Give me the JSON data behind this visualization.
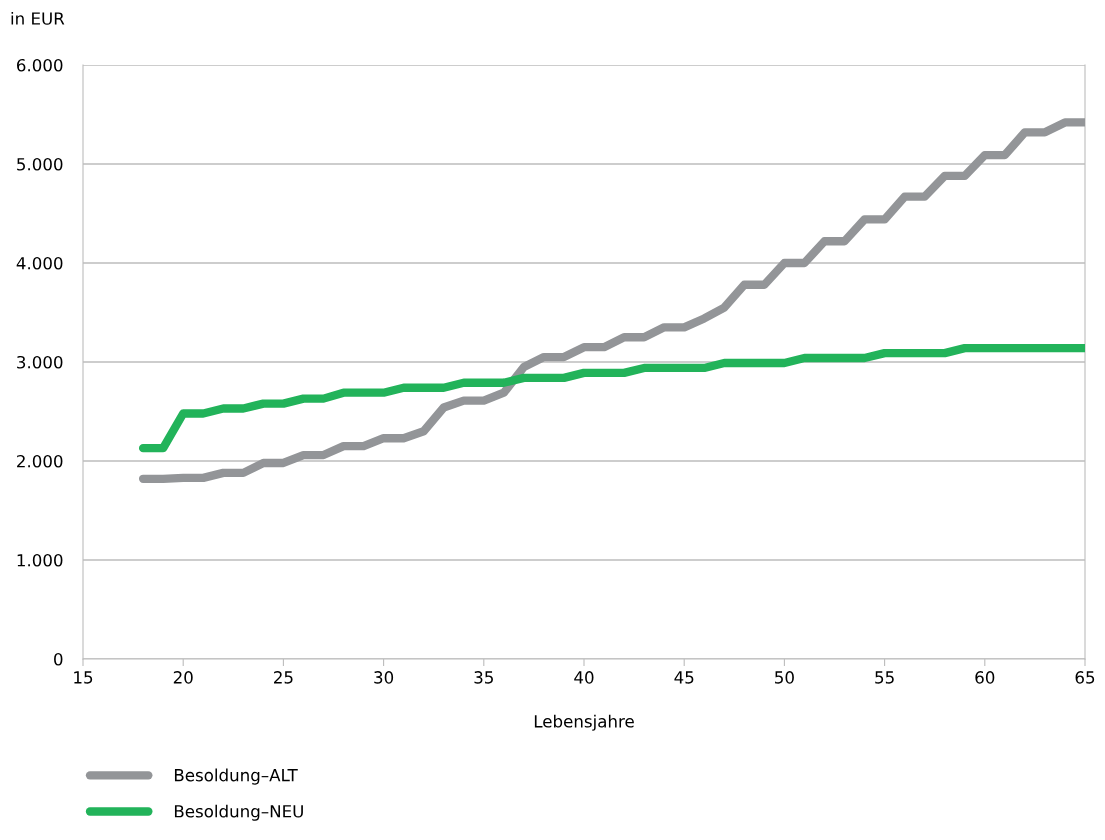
{
  "chart_data": {
    "type": "line",
    "ylabel": "in EUR",
    "xlabel": "Lebensjahre",
    "x": [
      18,
      19,
      20,
      21,
      22,
      23,
      24,
      25,
      26,
      27,
      28,
      29,
      30,
      31,
      32,
      33,
      34,
      35,
      36,
      37,
      38,
      39,
      40,
      41,
      42,
      43,
      44,
      45,
      46,
      47,
      48,
      49,
      50,
      51,
      52,
      53,
      54,
      55,
      56,
      57,
      58,
      59,
      60,
      61,
      62,
      63,
      64,
      65
    ],
    "series": [
      {
        "name": "Besoldung–ALT",
        "color": "#939598",
        "values": [
          1820,
          1820,
          1830,
          1830,
          1880,
          1880,
          1980,
          1980,
          2060,
          2060,
          2150,
          2150,
          2230,
          2230,
          2300,
          2540,
          2610,
          2610,
          2690,
          2950,
          3050,
          3050,
          3150,
          3150,
          3250,
          3250,
          3350,
          3350,
          3440,
          3550,
          3780,
          3780,
          4000,
          4000,
          4220,
          4220,
          4440,
          4440,
          4670,
          4670,
          4880,
          4880,
          5090,
          5090,
          5320,
          5320,
          5420,
          5420
        ]
      },
      {
        "name": "Besoldung–NEU",
        "color": "#22b35a",
        "values": [
          2130,
          2130,
          2480,
          2480,
          2530,
          2530,
          2580,
          2580,
          2630,
          2630,
          2690,
          2690,
          2690,
          2740,
          2740,
          2740,
          2790,
          2790,
          2790,
          2840,
          2840,
          2840,
          2890,
          2890,
          2890,
          2940,
          2940,
          2940,
          2940,
          2990,
          2990,
          2990,
          2990,
          3040,
          3040,
          3040,
          3040,
          3090,
          3090,
          3090,
          3090,
          3140,
          3140,
          3140,
          3140,
          3140,
          3140,
          3140
        ]
      }
    ],
    "xlim": [
      15,
      65
    ],
    "xticks": [
      15,
      20,
      25,
      30,
      35,
      40,
      45,
      50,
      55,
      60,
      65
    ],
    "ylim": [
      0,
      6000
    ],
    "yticks": [
      0,
      {
        "value": 1000,
        "label": "1.000"
      },
      {
        "value": 2000,
        "label": "2.000"
      },
      {
        "value": 3000,
        "label": "3.000"
      },
      {
        "value": 4000,
        "label": "4.000"
      },
      {
        "value": 5000,
        "label": "5.000"
      },
      {
        "value": 6000,
        "label": "6.000"
      }
    ],
    "grid": "y",
    "legend": "bottom left",
    "marker": "none",
    "line_style": "solid"
  }
}
